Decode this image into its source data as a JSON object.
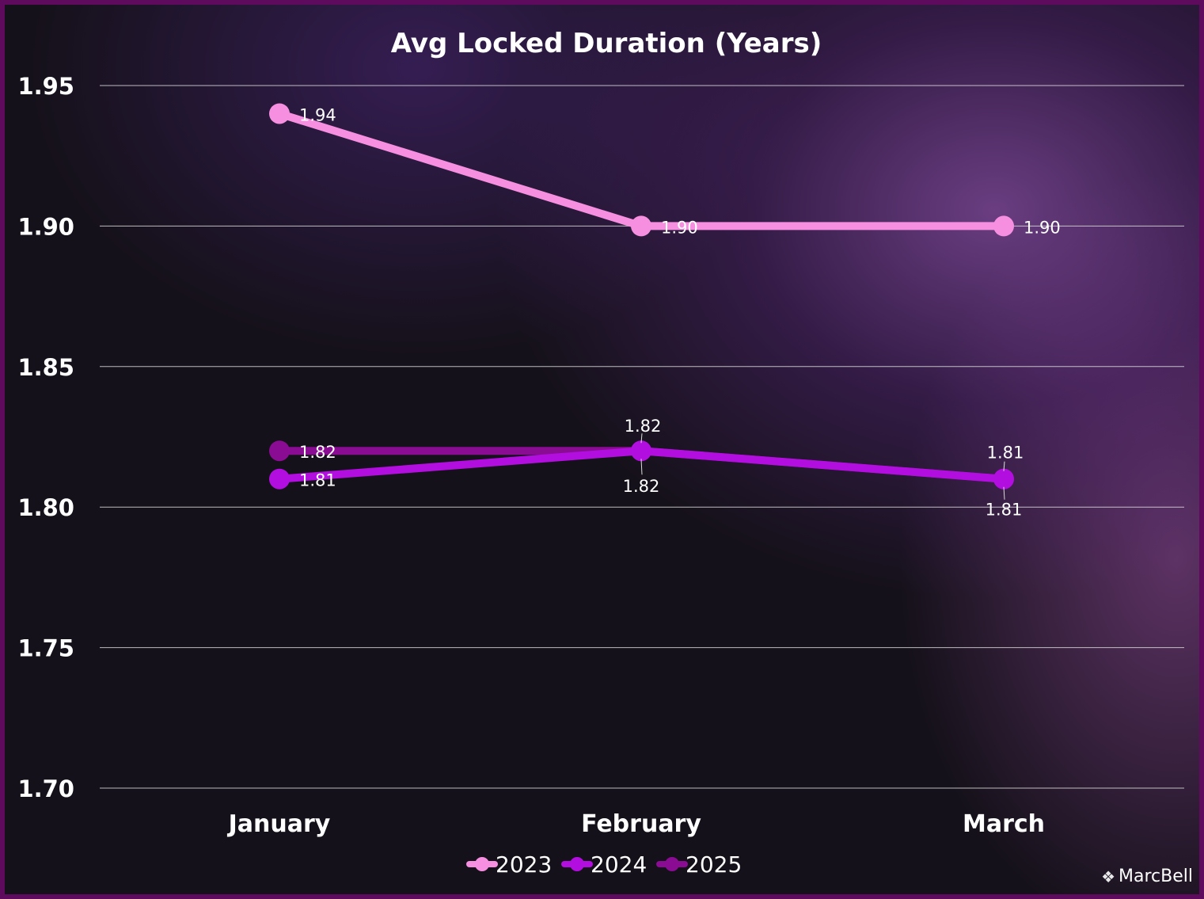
{
  "watermark": {
    "text": "MarcBell",
    "icon": "binance-diamond-icon"
  },
  "colors": {
    "background": "#15111a",
    "border": "#5e0b5e",
    "grid": "#d9d9d9",
    "text": "#ffffff"
  },
  "chart_data": {
    "type": "line",
    "title": "Avg Locked Duration (Years)",
    "xlabel": "",
    "ylabel": "",
    "categories": [
      "January",
      "February",
      "March"
    ],
    "ylim": [
      1.7,
      1.95
    ],
    "yticks": [
      1.7,
      1.75,
      1.8,
      1.85,
      1.9,
      1.95
    ],
    "ytick_labels": [
      "1.70",
      "1.75",
      "1.80",
      "1.85",
      "1.90",
      "1.95"
    ],
    "grid": true,
    "legend_position": "bottom",
    "series": [
      {
        "name": "2023",
        "values": [
          1.94,
          1.9,
          1.9
        ],
        "labels": [
          "1.94",
          "1.90",
          "1.90"
        ],
        "color": "#f78fe0"
      },
      {
        "name": "2024",
        "values": [
          1.81,
          1.82,
          1.81
        ],
        "labels": [
          "1.81",
          "1.82",
          "1.81"
        ],
        "color": "#b30ee0"
      },
      {
        "name": "2025",
        "values": [
          1.82,
          1.82,
          1.81
        ],
        "labels": [
          "1.82",
          "1.82",
          "1.81"
        ],
        "color": "#8a0c93"
      }
    ]
  }
}
